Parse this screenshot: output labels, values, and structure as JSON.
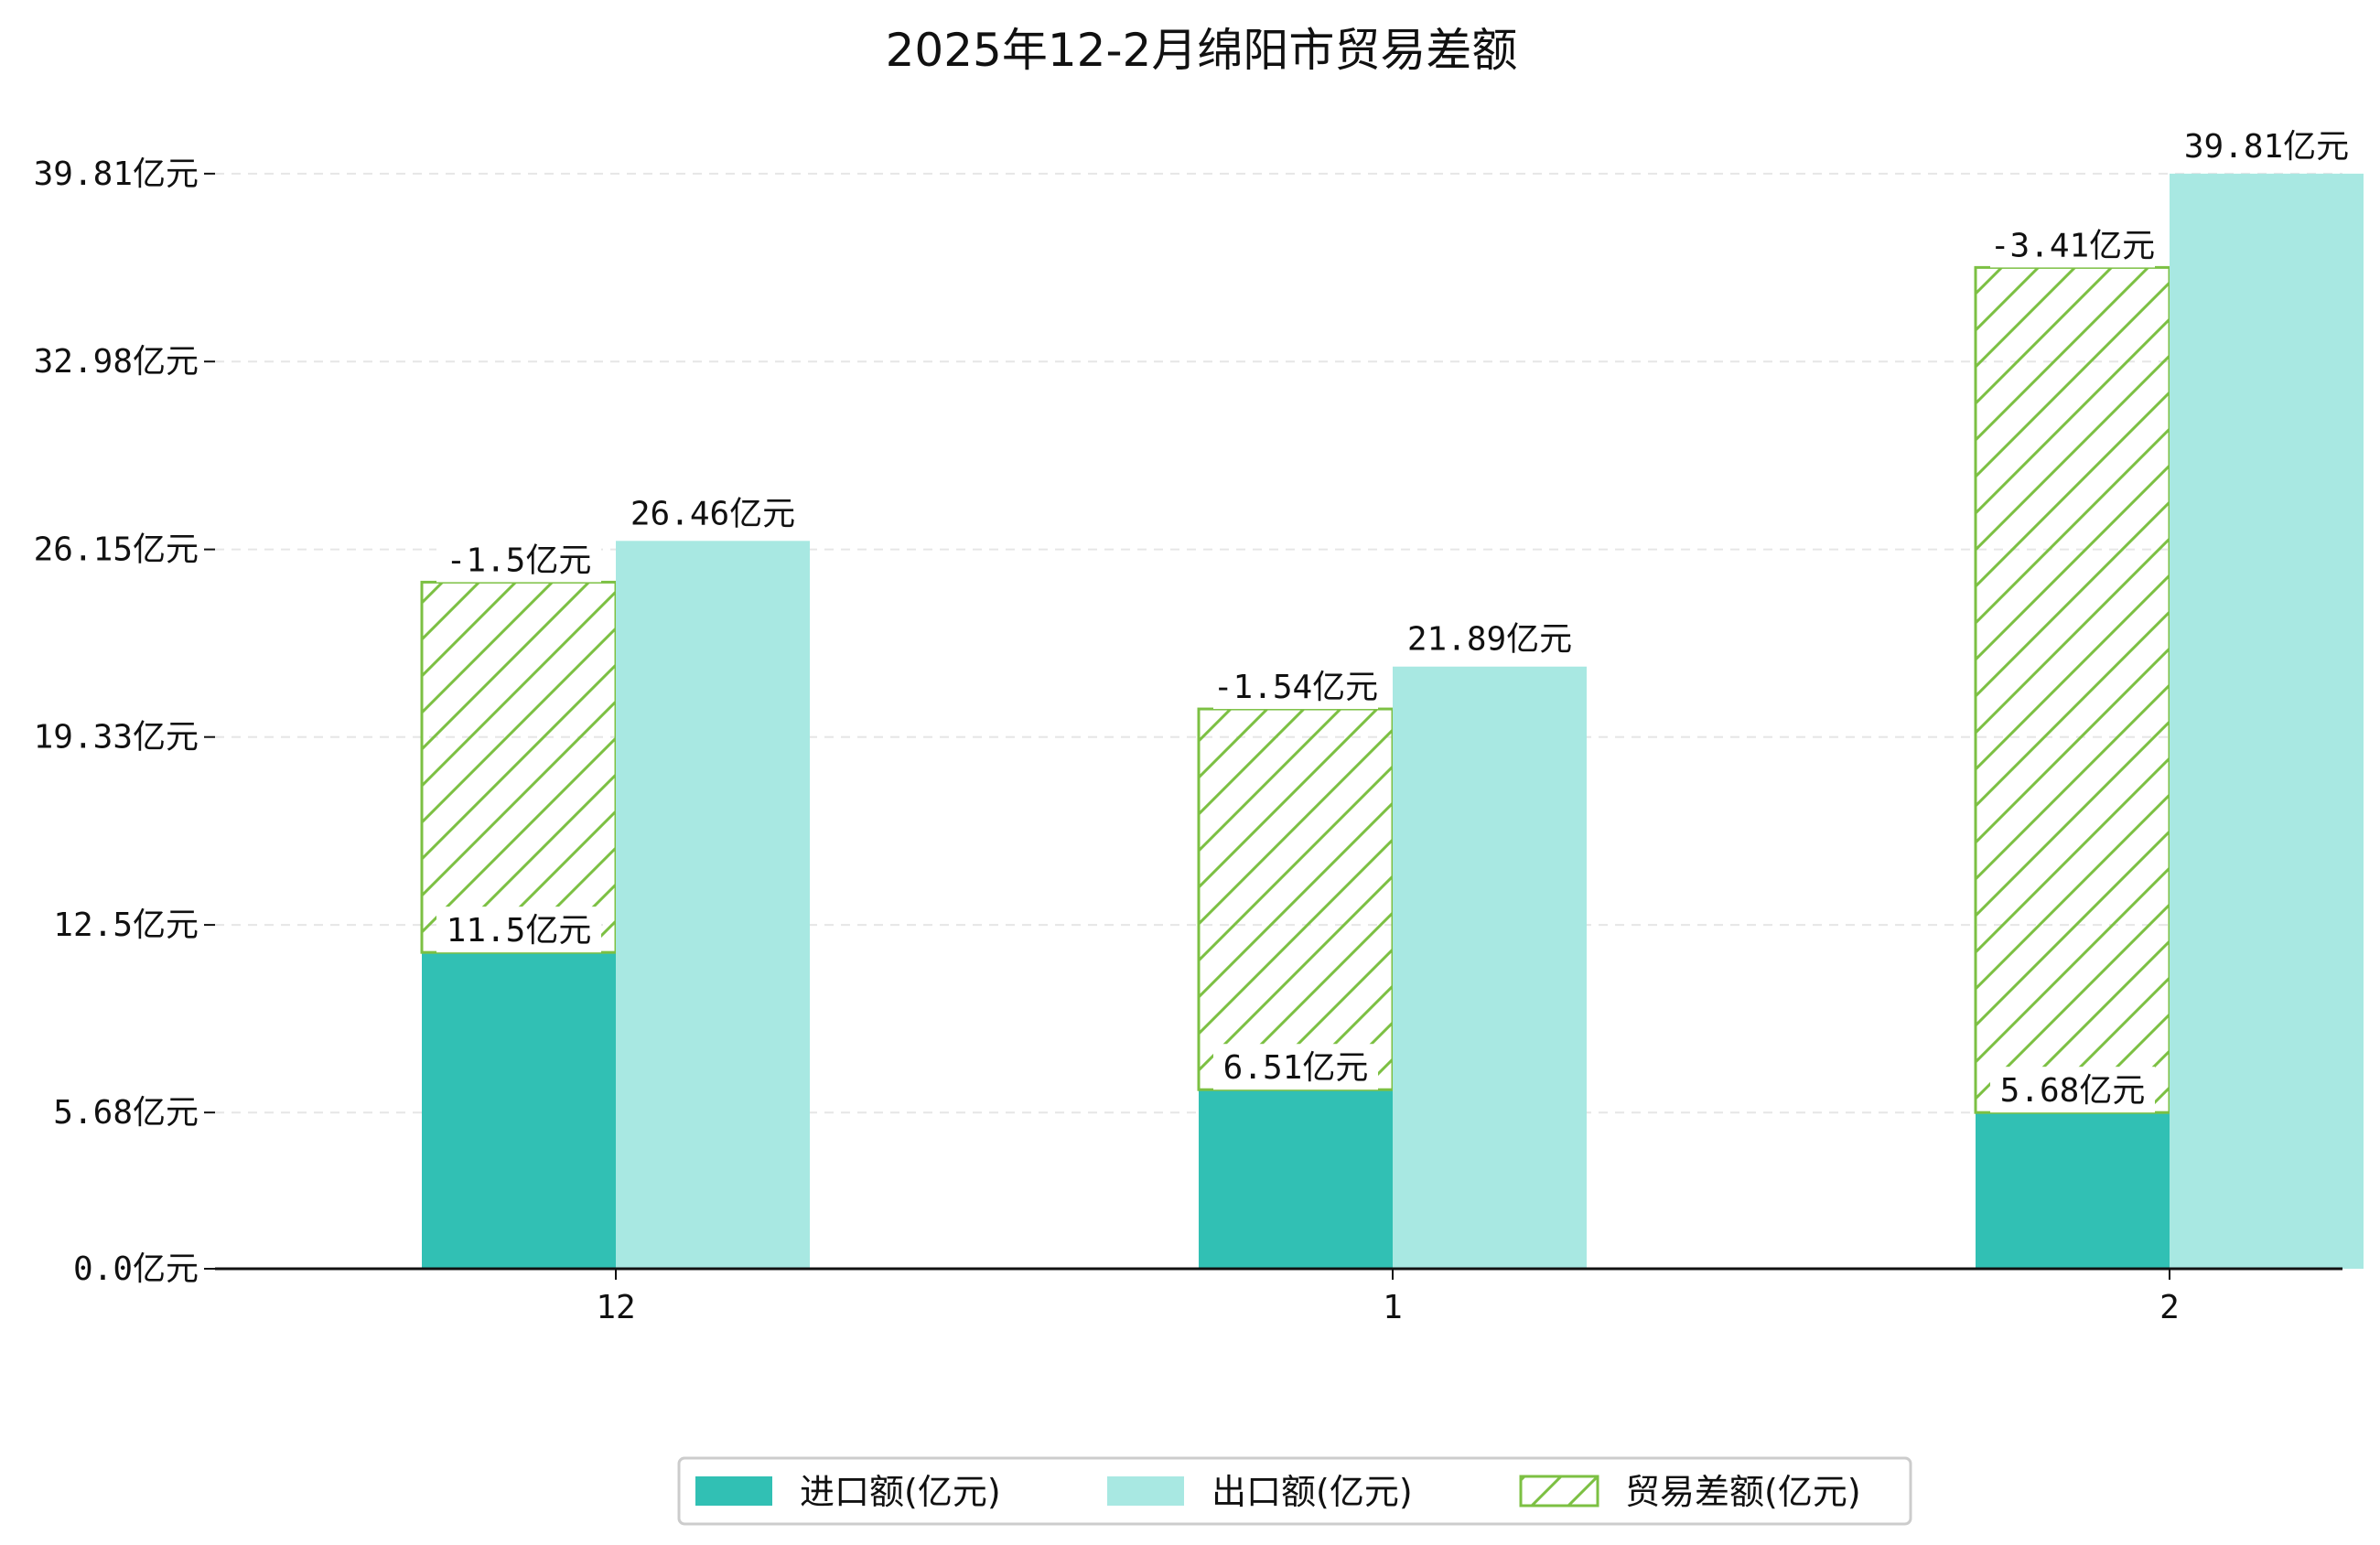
{
  "chart_data": {
    "type": "bar",
    "title": "2025年12-2月绵阳市贸易差额",
    "categories": [
      "12",
      "1",
      "2"
    ],
    "series": [
      {
        "name": "进口额(亿元)",
        "values": [
          11.5,
          6.51,
          5.68
        ]
      },
      {
        "name": "出口额(亿元)",
        "values": [
          26.46,
          21.89,
          39.81
        ]
      },
      {
        "name": "贸易差额(亿元)",
        "values": [
          -1.5,
          -1.54,
          -3.41
        ]
      }
    ],
    "value_labels": {
      "import": [
        "11.5亿元",
        "6.51亿元",
        "5.68亿元"
      ],
      "export": [
        "26.46亿元",
        "21.89亿元",
        "39.81亿元"
      ],
      "balance": [
        "-1.5亿元",
        "-1.54亿元",
        "-3.41亿元"
      ]
    },
    "yticks": [
      0.0,
      5.68,
      12.5,
      19.33,
      26.15,
      32.98,
      39.81
    ],
    "ytick_labels": [
      "0.0亿元",
      "5.68亿元",
      "12.5亿元",
      "19.33亿元",
      "26.15亿元",
      "32.98亿元",
      "39.81亿元"
    ],
    "ylim": [
      0,
      41.8
    ],
    "grid": true,
    "legend_position": "bottom-center",
    "colors": {
      "import": "#31c0b4",
      "export": "#a8e8e2",
      "balance": "#7cc043"
    }
  }
}
